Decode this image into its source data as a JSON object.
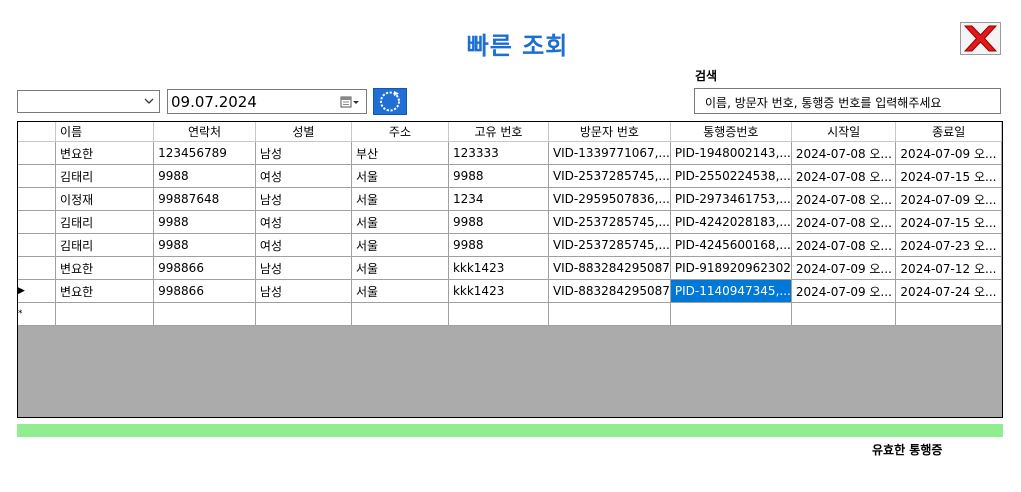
{
  "window": {
    "title": "빠른 조회"
  },
  "filters": {
    "combo_value": "",
    "date_value": "09.07.2024"
  },
  "search": {
    "label": "검색",
    "placeholder": "이름, 방문자 번호, 통행증 번호를 입력해주세요"
  },
  "table": {
    "columns": [
      "이름",
      "연락처",
      "성별",
      "주소",
      "고유 번호",
      "방문자 번호",
      "통행증번호",
      "시작일",
      "종료일"
    ],
    "rows": [
      {
        "cells": [
          "변요한",
          "123456789",
          "남성",
          "부산",
          "123333",
          "VID-1339771067,...",
          "PID-1948002143,...",
          "2024-07-08 오...",
          "2024-07-09 오..."
        ],
        "marker": ""
      },
      {
        "cells": [
          "김태리",
          "9988",
          "여성",
          "서울",
          "9988",
          "VID-2537285745,...",
          "PID-2550224538,...",
          "2024-07-08 오...",
          "2024-07-15 오..."
        ],
        "marker": ""
      },
      {
        "cells": [
          "이정재",
          "99887648",
          "남성",
          "서울",
          "1234",
          "VID-2959507836,...",
          "PID-2973461753,...",
          "2024-07-08 오...",
          "2024-07-09 오..."
        ],
        "marker": ""
      },
      {
        "cells": [
          "김태리",
          "9988",
          "여성",
          "서울",
          "9988",
          "VID-2537285745,...",
          "PID-4242028183,...",
          "2024-07-08 오...",
          "2024-07-15 오..."
        ],
        "marker": ""
      },
      {
        "cells": [
          "김태리",
          "9988",
          "여성",
          "서울",
          "9988",
          "VID-2537285745,...",
          "PID-4245600168,...",
          "2024-07-08 오...",
          "2024-07-23 오..."
        ],
        "marker": ""
      },
      {
        "cells": [
          "변요한",
          "998866",
          "남성",
          "서울",
          "kkk1423",
          "VID-883284295087",
          "PID-918920962302",
          "2024-07-09 오...",
          "2024-07-12 오..."
        ],
        "marker": ""
      },
      {
        "cells": [
          "변요한",
          "998866",
          "남성",
          "서울",
          "kkk1423",
          "VID-883284295087",
          "PID-1140947345,...",
          "2024-07-09 오...",
          "2024-07-24 오..."
        ],
        "marker": "▶"
      }
    ],
    "new_row_marker": "*",
    "selected": {
      "row": 6,
      "col": 6
    }
  },
  "status": {
    "label": "유효한 통행증",
    "color": "#90ee90"
  },
  "icons": [
    "close-icon",
    "chevron-down-icon",
    "calendar-icon",
    "refresh-icon"
  ]
}
